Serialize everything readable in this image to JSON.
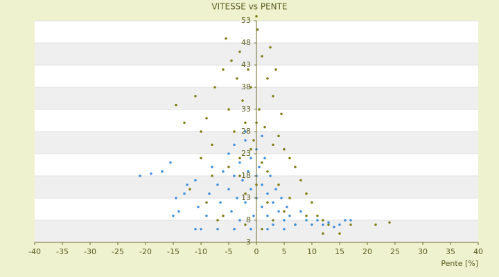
{
  "chart_data": {
    "type": "scatter",
    "title": "VITESSE vs PENTE",
    "x_label": "Pente [%]",
    "xlim": [
      -40,
      40
    ],
    "xticks": [
      -40,
      -35,
      -30,
      -25,
      -20,
      -15,
      -10,
      -5,
      0,
      5,
      10,
      15,
      20,
      25,
      30,
      35,
      40
    ],
    "ylim": [
      3,
      53
    ],
    "yticks": [
      3,
      8,
      13,
      18,
      23,
      28,
      33,
      38,
      43,
      48,
      53
    ],
    "grid": true,
    "series": [
      {
        "color": "#7d7d14",
        "x": [
          -14.5,
          -13,
          -11,
          -10,
          -9,
          -8,
          -7.5,
          -6,
          -5.5,
          -5,
          -4.5,
          -4,
          -3.5,
          -3,
          -2.5,
          -2,
          -1.5,
          -1,
          -0.5,
          0,
          0.2,
          0.5,
          1,
          1.5,
          2,
          2.5,
          3,
          3.5,
          4,
          4.5,
          5,
          6,
          7,
          8,
          9,
          10,
          11,
          12,
          13,
          15,
          17,
          21.5,
          24,
          -12,
          -9,
          -6,
          -4,
          -2,
          1,
          3,
          -8,
          -5,
          -3,
          -1,
          1,
          2,
          4,
          6,
          -7,
          -10,
          -2,
          0,
          2,
          5,
          7,
          9,
          12,
          -3,
          3,
          0
        ],
        "values": [
          34,
          30,
          36,
          28,
          31,
          25,
          38,
          42,
          49,
          33,
          44,
          28,
          40,
          46,
          35,
          30,
          42,
          38,
          26,
          54,
          51,
          33,
          45,
          29,
          40,
          47,
          36,
          42,
          27,
          32,
          24,
          22,
          20,
          17,
          14,
          12,
          9,
          8,
          7,
          5,
          7,
          7,
          7.5,
          15,
          12,
          9,
          6,
          7,
          6,
          8,
          18,
          20,
          22,
          24,
          21,
          19,
          16,
          13,
          8,
          22,
          14,
          16,
          12,
          10,
          7,
          9,
          5,
          18,
          25,
          30
        ]
      },
      {
        "color": "#3d8fdb",
        "x": [
          -21,
          -19,
          -17,
          -15.5,
          -14.5,
          -15,
          -14,
          -13,
          -12.5,
          -11,
          -10.5,
          -10,
          -9,
          -8.5,
          -8,
          -7,
          -6.5,
          -6,
          -5,
          -5,
          -4.5,
          -4,
          -4,
          -3.5,
          -3,
          -3,
          -2.5,
          -2,
          -2,
          -1.5,
          -1,
          -1,
          -0.5,
          0,
          0,
          0,
          0.5,
          1,
          1,
          1.5,
          2,
          2,
          2.5,
          3,
          3,
          3.5,
          4,
          4.5,
          5,
          5.5,
          6,
          7,
          8,
          9,
          10,
          11,
          12,
          13,
          14,
          15,
          16,
          17,
          -7,
          -4,
          -1,
          2,
          5,
          -11,
          -2,
          1
        ],
        "values": [
          18,
          18.5,
          19,
          21,
          13,
          9,
          10,
          14,
          16,
          17,
          11,
          6,
          9,
          14,
          20,
          16,
          12,
          19,
          23,
          15,
          10,
          25,
          18,
          13,
          21,
          8,
          17,
          26,
          12,
          19,
          22,
          15,
          9,
          24,
          18,
          13,
          20,
          16,
          11,
          22,
          14,
          9,
          18,
          12,
          7,
          15,
          10,
          13,
          8,
          11,
          9,
          7,
          10,
          8,
          7,
          8,
          7,
          7.5,
          6.5,
          7,
          8,
          8,
          6,
          6,
          6,
          6,
          6,
          6,
          28,
          27
        ]
      }
    ]
  }
}
